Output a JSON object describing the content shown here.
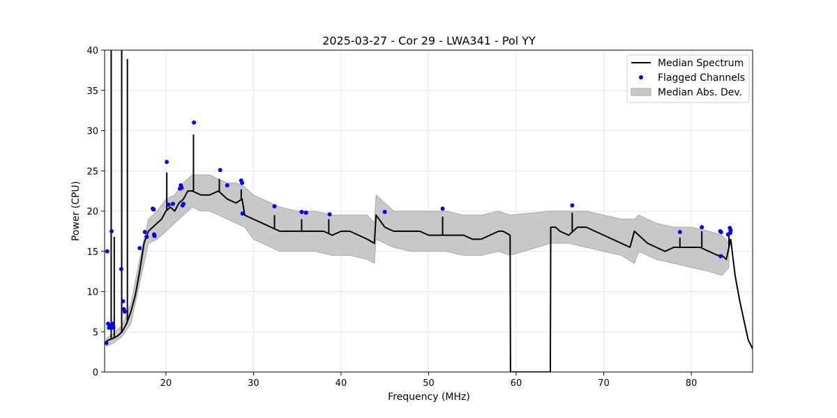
{
  "chart_data": {
    "type": "line",
    "title": "2025-03-27 - Cor 29 - LWA341 - Pol YY",
    "xlabel": "Frequency (MHz)",
    "ylabel": "Power (CPU)",
    "xlim": [
      13,
      87
    ],
    "ylim": [
      0,
      40
    ],
    "xticks": [
      20,
      30,
      40,
      50,
      60,
      70,
      80
    ],
    "xtick_labels": [
      "20",
      "30",
      "40",
      "50",
      "60",
      "70",
      "80"
    ],
    "yticks": [
      0,
      5,
      10,
      15,
      20,
      25,
      30,
      35,
      40
    ],
    "ytick_labels": [
      "0",
      "5",
      "10",
      "15",
      "20",
      "25",
      "30",
      "35",
      "40"
    ],
    "grid": true,
    "legend_placement": "top-right",
    "colors": {
      "median": "#000000",
      "flagged": "#0000ff",
      "mad_fill": "#c8c8c8",
      "mad_edge": "#a8a8a8",
      "grid": "#e6e6e6"
    },
    "legend": [
      {
        "label": "Median Spectrum",
        "kind": "line"
      },
      {
        "label": "Flagged Channels",
        "kind": "marker"
      },
      {
        "label": "Median Abs. Dev.",
        "kind": "patch"
      }
    ],
    "series": [
      {
        "name": "Median Spectrum",
        "x": [
          13.2,
          13.5,
          14.0,
          14.5,
          15.0,
          15.5,
          16.0,
          16.5,
          17.0,
          17.5,
          18.0,
          18.5,
          19.0,
          19.5,
          20.0,
          20.5,
          21.0,
          21.5,
          22.0,
          22.5,
          23.0,
          24.0,
          25.0,
          26.0,
          27.0,
          28.0,
          28.7,
          29.0,
          30.0,
          31.0,
          32.0,
          33.0,
          34.0,
          35.0,
          36.0,
          37.0,
          38.0,
          39.0,
          40.0,
          41.0,
          42.0,
          43.0,
          43.8,
          44.0,
          45.0,
          46.0,
          47.0,
          48.0,
          49.0,
          50.0,
          51.0,
          52.0,
          53.0,
          54.0,
          55.0,
          56.0,
          57.0,
          58.0,
          58.5,
          59.3,
          59.35,
          63.9,
          63.95,
          64.5,
          65.0,
          66.0,
          67.0,
          68.0,
          69.0,
          70.0,
          71.0,
          72.0,
          73.0,
          73.5,
          74.0,
          75.0,
          76.0,
          77.0,
          78.0,
          79.0,
          80.0,
          81.0,
          82.0,
          83.0,
          83.5,
          84.0,
          84.5,
          85.0,
          85.5,
          86.0,
          86.5,
          87.0
        ],
        "y": [
          3.8,
          4.0,
          4.2,
          4.5,
          5.0,
          6.0,
          7.5,
          9.5,
          12.5,
          16.0,
          17.5,
          18.0,
          18.5,
          19.0,
          20.0,
          20.5,
          20.0,
          21.0,
          21.5,
          22.5,
          22.5,
          22.0,
          22.0,
          22.5,
          21.5,
          21.0,
          21.5,
          19.5,
          19.0,
          18.5,
          18.0,
          17.5,
          17.5,
          17.5,
          17.5,
          17.5,
          17.5,
          17.0,
          17.5,
          17.5,
          17.0,
          16.5,
          16.0,
          19.5,
          18.0,
          17.5,
          17.5,
          17.5,
          17.5,
          17.0,
          17.0,
          17.0,
          17.0,
          17.0,
          16.5,
          16.5,
          17.0,
          17.5,
          17.5,
          17.0,
          0.0,
          0.0,
          18.0,
          18.0,
          17.5,
          17.0,
          18.0,
          18.0,
          17.5,
          17.0,
          16.5,
          16.0,
          15.5,
          17.5,
          17.0,
          16.0,
          15.5,
          15.0,
          15.5,
          15.5,
          15.5,
          15.5,
          15.0,
          14.5,
          14.5,
          14.0,
          16.5,
          12.0,
          9.0,
          6.5,
          4.0,
          2.9
        ]
      },
      {
        "name": "Median Abs. Dev.",
        "x": [
          13.2,
          14.0,
          15.0,
          16.0,
          17.0,
          18.0,
          19.0,
          20.0,
          21.0,
          22.0,
          23.0,
          24.0,
          25.0,
          26.0,
          27.0,
          28.0,
          29.0,
          30.0,
          31.0,
          32.0,
          33.0,
          35.0,
          37.0,
          39.0,
          41.0,
          43.0,
          43.8,
          44.0,
          46.0,
          48.0,
          50.0,
          52.0,
          54.0,
          56.0,
          58.0,
          59.3,
          63.95,
          66.0,
          68.0,
          70.0,
          72.0,
          73.5,
          74.0,
          76.0,
          78.0,
          80.0,
          82.0,
          83.5,
          84.3
        ],
        "upper": [
          4.2,
          4.8,
          5.8,
          8.5,
          14.0,
          19.0,
          20.0,
          21.5,
          22.0,
          23.5,
          24.5,
          24.5,
          24.5,
          24.0,
          23.5,
          23.5,
          23.0,
          22.0,
          21.5,
          21.0,
          20.5,
          20.0,
          20.0,
          19.5,
          19.5,
          19.5,
          18.5,
          22.0,
          20.0,
          20.0,
          20.0,
          20.0,
          19.5,
          19.5,
          20.0,
          19.5,
          20.0,
          20.0,
          20.0,
          19.5,
          19.0,
          19.0,
          19.5,
          18.5,
          18.0,
          18.0,
          17.5,
          17.0,
          16.0
        ],
        "lower": [
          3.2,
          3.6,
          4.4,
          6.0,
          11.0,
          16.0,
          16.5,
          17.5,
          18.5,
          19.5,
          20.5,
          20.0,
          20.0,
          19.5,
          19.0,
          18.5,
          18.0,
          16.5,
          16.0,
          15.5,
          15.0,
          15.0,
          15.0,
          14.5,
          14.5,
          14.0,
          13.5,
          16.5,
          15.5,
          15.0,
          15.0,
          15.0,
          14.5,
          14.5,
          15.0,
          14.5,
          16.0,
          16.0,
          15.5,
          15.0,
          14.5,
          13.5,
          15.0,
          14.0,
          13.5,
          13.0,
          12.5,
          12.0,
          13.0
        ]
      },
      {
        "name": "Flagged Channels",
        "type": "scatter",
        "x": [
          13.2,
          13.3,
          13.4,
          13.5,
          13.6,
          13.7,
          13.8,
          13.9,
          14.0,
          14.9,
          15.1,
          15.2,
          15.3,
          17.0,
          17.6,
          17.8,
          18.5,
          18.6,
          18.65,
          18.7,
          20.1,
          20.3,
          20.8,
          21.6,
          21.7,
          21.8,
          21.9,
          22.0,
          23.2,
          26.2,
          27.0,
          28.6,
          28.7,
          28.75,
          32.4,
          35.5,
          36.0,
          38.7,
          45.0,
          51.6,
          66.4,
          78.7,
          81.2,
          83.3,
          83.4,
          83.35,
          84.2,
          84.4,
          84.5,
          84.45
        ],
        "y": [
          3.6,
          15.0,
          6.0,
          5.5,
          5.7,
          5.8,
          17.5,
          6.0,
          5.5,
          12.8,
          8.8,
          7.8,
          7.5,
          15.4,
          17.4,
          16.8,
          20.3,
          20.2,
          17.1,
          16.9,
          26.1,
          20.8,
          20.9,
          22.8,
          23.2,
          22.9,
          20.7,
          20.9,
          31.0,
          25.1,
          23.2,
          23.8,
          23.5,
          19.7,
          20.6,
          19.9,
          19.8,
          19.6,
          19.9,
          20.3,
          20.7,
          17.4,
          18.0,
          17.5,
          17.4,
          14.4,
          17.1,
          17.9,
          17.6,
          17.3
        ]
      }
    ],
    "spikes": [
      {
        "x": 13.75,
        "y": 40
      },
      {
        "x": 14.1,
        "y": 16.8
      },
      {
        "x": 14.95,
        "y": 40
      },
      {
        "x": 15.6,
        "y": 38.9
      },
      {
        "x": 20.1,
        "y": 24.8
      },
      {
        "x": 23.15,
        "y": 29.5
      },
      {
        "x": 26.1,
        "y": 24.0
      },
      {
        "x": 28.6,
        "y": 22.7
      },
      {
        "x": 32.4,
        "y": 19.5
      },
      {
        "x": 35.5,
        "y": 19.0
      },
      {
        "x": 38.6,
        "y": 19.0
      },
      {
        "x": 51.6,
        "y": 19.3
      },
      {
        "x": 66.4,
        "y": 19.8
      },
      {
        "x": 78.7,
        "y": 16.7
      },
      {
        "x": 81.2,
        "y": 17.5
      },
      {
        "x": 84.3,
        "y": 17.3
      }
    ]
  }
}
